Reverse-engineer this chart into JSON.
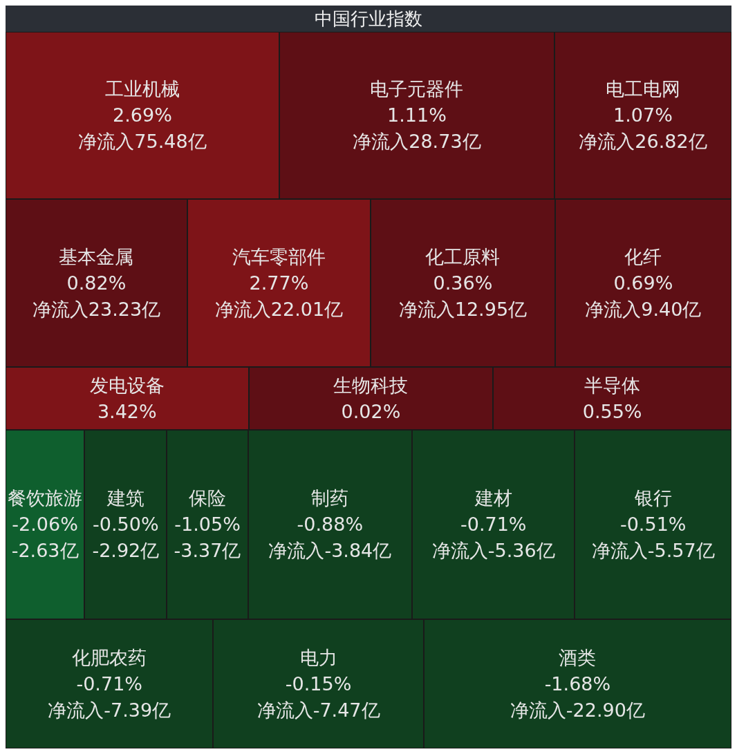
{
  "chart_data": {
    "type": "other",
    "title": "中国行业指数",
    "categories": [
      "工业机械",
      "电子元器件",
      "电工电网",
      "基本金属",
      "汽车零部件",
      "化工原料",
      "化纤",
      "发电设备",
      "生物科技",
      "半导体",
      "餐饮旅游",
      "建筑",
      "保险",
      "制药",
      "建材",
      "银行",
      "化肥农药",
      "电力",
      "酒类"
    ],
    "series": [
      {
        "colors": [
          "#7e1418",
          "#5e0f15",
          "#5e0f15",
          "#5e0f15",
          "#7e1418",
          "#5e0f15",
          "#5e0f15",
          "#7e1418",
          "#5e0f15",
          "#5e0f15",
          "#0f5f2e",
          "#10401f",
          "#10401f",
          "#10401f",
          "#10401f",
          "#10401f",
          "#10401f",
          "#10401f",
          "#10401f"
        ],
        "values": [
          2.69,
          1.11,
          1.07,
          0.82,
          2.77,
          0.36,
          0.69,
          3.42,
          0.02,
          0.55,
          -2.06,
          -0.5,
          -1.05,
          -0.88,
          -0.71,
          -0.51,
          -0.71,
          -0.15,
          -1.68
        ],
        "value_labels": [
          "2.69%",
          "1.11%",
          "1.07%",
          "0.82%",
          "2.77%",
          "0.36%",
          "0.69%",
          "3.42%",
          "0.02%",
          "0.55%",
          "-2.06%",
          "-0.50%",
          "-1.05%",
          "-0.88%",
          "-0.71%",
          "-0.51%",
          "-0.71%",
          "-0.15%",
          "-1.68%"
        ]
      },
      {
        "values": [
          75.48,
          28.73,
          26.82,
          23.23,
          22.01,
          12.95,
          9.4,
          null,
          null,
          null,
          -2.63,
          -2.92,
          -3.37,
          -3.84,
          -5.36,
          -5.57,
          -7.39,
          -7.47,
          -22.9
        ],
        "value_labels": [
          "净流入75.48亿",
          "净流入28.73亿",
          "净流入26.82亿",
          "净流入23.23亿",
          "净流入22.01亿",
          "净流入12.95亿",
          "净流入9.40亿",
          null,
          null,
          null,
          "-2.63亿",
          "-2.92亿",
          "-3.37亿",
          "净流入-3.84亿",
          "净流入-5.36亿",
          "净流入-5.57亿",
          "净流入-7.39亿",
          "净流入-7.47亿",
          "净流入-22.90亿"
        ]
      }
    ]
  }
}
